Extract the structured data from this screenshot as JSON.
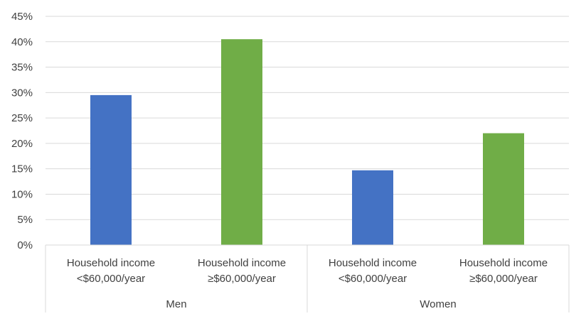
{
  "chart_data": {
    "type": "bar",
    "title": "",
    "xlabel": "",
    "ylabel": "",
    "ylim": [
      0,
      45
    ],
    "yticks": [
      "0%",
      "5%",
      "10%",
      "15%",
      "20%",
      "25%",
      "30%",
      "35%",
      "40%",
      "45%"
    ],
    "grid": true,
    "legend": "none",
    "groups": [
      {
        "name": "Men",
        "bars": [
          {
            "category_line1": "Household income",
            "category_line2": "<$60,000/year",
            "value": 29.5,
            "color": "#4472c4"
          },
          {
            "category_line1": "Household income",
            "category_line2": "≥$60,000/year",
            "value": 40.5,
            "color": "#70ad47"
          }
        ]
      },
      {
        "name": "Women",
        "bars": [
          {
            "category_line1": "Household income",
            "category_line2": "<$60,000/year",
            "value": 14.7,
            "color": "#4472c4"
          },
          {
            "category_line1": "Household income",
            "category_line2": "≥$60,000/year",
            "value": 22.0,
            "color": "#70ad47"
          }
        ]
      }
    ]
  }
}
